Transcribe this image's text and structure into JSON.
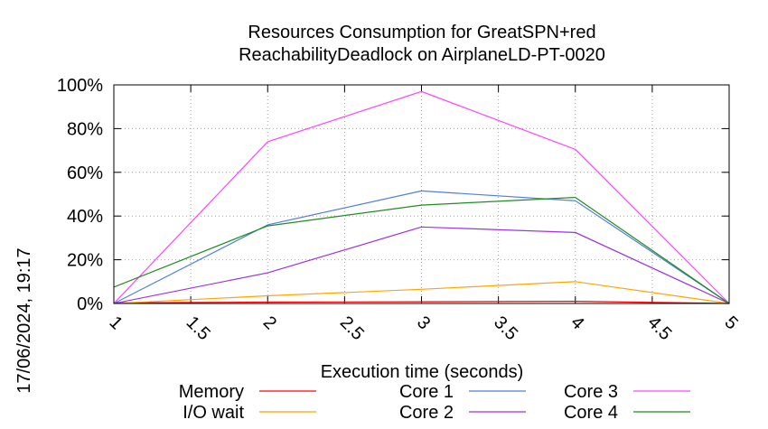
{
  "chart_data": {
    "type": "line",
    "title_line1": "Resources Consumption for GreatSPN+red",
    "title_line2": "ReachabilityDeadlock on AirplaneLD-PT-0020",
    "xlabel": "Execution time (seconds)",
    "ylabel": "",
    "side_label": "17/06/2024, 19:17",
    "xlim": [
      1,
      5
    ],
    "ylim": [
      0,
      100
    ],
    "x_ticks": [
      "1",
      "1.5",
      "2",
      "2.5",
      "3",
      "3.5",
      "4",
      "4.5",
      "5"
    ],
    "y_ticks": [
      "0%",
      "20%",
      "40%",
      "60%",
      "80%",
      "100%"
    ],
    "grid": true,
    "legend_position": "bottom",
    "x": [
      1,
      2,
      3,
      4,
      5
    ],
    "series": [
      {
        "name": "Memory",
        "color": "#ff0000",
        "values": [
          0.3,
          0.6,
          0.8,
          1.0,
          0
        ]
      },
      {
        "name": "I/O wait",
        "color": "#ffa500",
        "values": [
          0,
          3.5,
          6.5,
          10,
          0
        ]
      },
      {
        "name": "Core 1",
        "color": "#4f7fdf",
        "values": [
          0,
          36,
          51.5,
          47,
          0
        ]
      },
      {
        "name": "Core 2",
        "color": "#9a32e6",
        "values": [
          0,
          14,
          35,
          32.5,
          0
        ]
      },
      {
        "name": "Core 3",
        "color": "#ff44ff",
        "values": [
          0,
          74,
          97,
          70.5,
          0
        ]
      },
      {
        "name": "Core 4",
        "color": "#228b22",
        "values": [
          7.5,
          35.5,
          45,
          48.5,
          0
        ]
      }
    ]
  }
}
